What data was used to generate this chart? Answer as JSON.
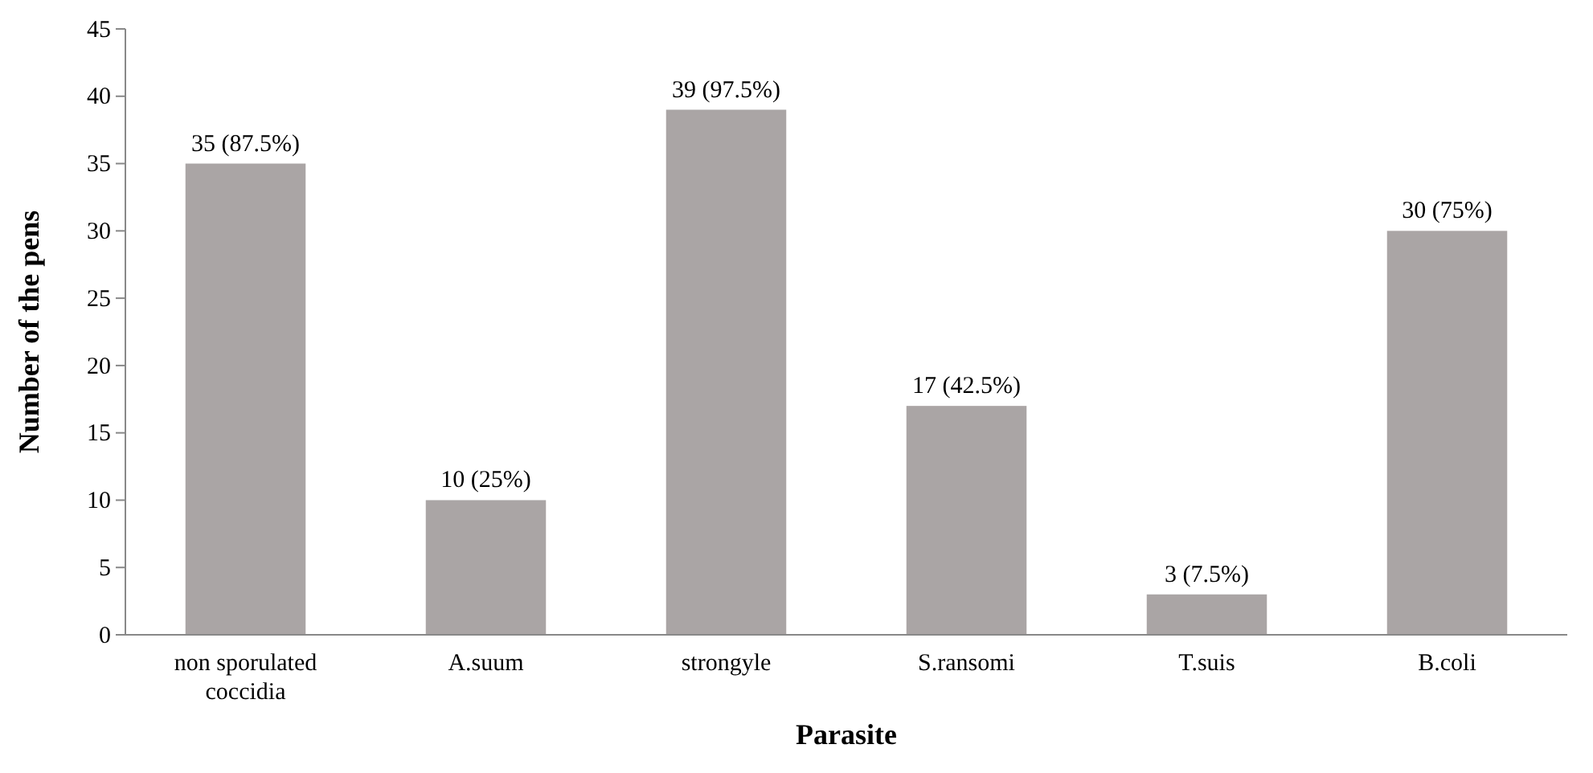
{
  "chart_data": {
    "type": "bar",
    "xlabel": "Parasite",
    "ylabel": "Number of the pens",
    "categories": [
      "non sporulated coccidia",
      "A.suum",
      "strongyle",
      "S.ransomi",
      "T.suis",
      "B.coli"
    ],
    "values": [
      35,
      10,
      39,
      17,
      3,
      30
    ],
    "value_labels": [
      "35 (87.5%)",
      "10 (25%)",
      "39 (97.5%)",
      "17 (42.5%)",
      "3 (7.5%)",
      "30 (75%)"
    ],
    "color": "#aaa5a5",
    "ylim": [
      0,
      45
    ],
    "yticks": [
      0,
      5,
      10,
      15,
      20,
      25,
      30,
      35,
      40,
      45
    ],
    "grid": false
  }
}
